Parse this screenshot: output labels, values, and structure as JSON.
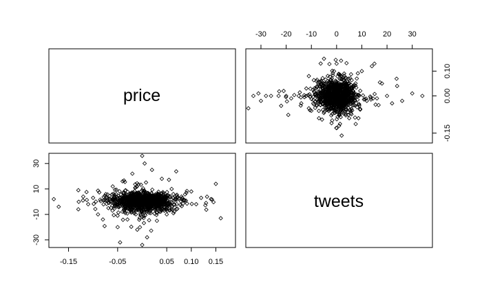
{
  "chart_data": {
    "type": "scatter",
    "layout": "pairs-matrix",
    "variables": [
      "price",
      "tweets"
    ],
    "panels": [
      {
        "name": "price-vs-tweets",
        "position": "top-right",
        "x_variable": "tweets",
        "y_variable": "price",
        "xlim": [
          -36,
          38
        ],
        "ylim": [
          -0.19,
          0.19
        ],
        "x_ticks": [
          -30,
          -20,
          -10,
          0,
          10,
          20,
          30
        ],
        "x_tick_labels": [
          "-30",
          "-20",
          "-10",
          "0",
          "10",
          "20",
          "30"
        ],
        "x_axis_side": "top",
        "y_ticks": [
          0.1,
          0.0,
          -0.15
        ],
        "y_tick_labels": [
          "0.10",
          "0.00",
          "-0.15"
        ],
        "y_axis_side": "right",
        "sample_points": [
          [
            -35,
            -0.05
          ],
          [
            -33,
            0.0
          ],
          [
            -31,
            0.01
          ],
          [
            -30,
            -0.02
          ],
          [
            -28,
            0.0
          ],
          [
            -26,
            0.0
          ],
          [
            -23,
            0.0
          ],
          [
            -22,
            -0.04
          ],
          [
            -21,
            0.02
          ],
          [
            -20,
            0.0
          ],
          [
            -18,
            -0.01
          ],
          [
            -15,
            0.0
          ],
          [
            -14,
            -0.03
          ],
          [
            -12,
            0.03
          ],
          [
            -11,
            0.08
          ],
          [
            -10,
            -0.06
          ],
          [
            -8,
            0.06
          ],
          [
            -7,
            -0.09
          ],
          [
            -5,
            0.15
          ],
          [
            -3,
            0.04
          ],
          [
            -2,
            -0.11
          ],
          [
            -1,
            0.1
          ],
          [
            0,
            -0.13
          ],
          [
            0,
            0.13
          ],
          [
            1,
            0.0
          ],
          [
            2,
            -0.16
          ],
          [
            3,
            0.09
          ],
          [
            5,
            -0.09
          ],
          [
            6,
            0.03
          ],
          [
            8,
            0.07
          ],
          [
            9,
            -0.04
          ],
          [
            10,
            0.1
          ],
          [
            12,
            -0.02
          ],
          [
            14,
            0.12
          ],
          [
            15,
            0.13
          ],
          [
            16,
            -0.01
          ],
          [
            18,
            0.05
          ],
          [
            20,
            0.0
          ],
          [
            22,
            -0.03
          ],
          [
            24,
            0.04
          ],
          [
            26,
            -0.02
          ],
          [
            30,
            0.01
          ],
          [
            34,
            0.0
          ]
        ]
      },
      {
        "name": "tweets-vs-price",
        "position": "bottom-left",
        "x_variable": "price",
        "y_variable": "tweets",
        "xlim": [
          -0.19,
          0.19
        ],
        "ylim": [
          -36,
          38
        ],
        "x_ticks": [
          -0.15,
          -0.05,
          0.05,
          0.1,
          0.15
        ],
        "x_tick_labels": [
          "-0.15",
          "-0.05",
          "0.05",
          "0.10",
          "0.15"
        ],
        "x_axis_side": "bottom",
        "y_ticks": [
          30,
          10,
          -10,
          -30
        ],
        "y_tick_labels": [
          "30",
          "10",
          "-10",
          "-30"
        ],
        "y_axis_side": "left",
        "sample_points": [
          [
            -0.18,
            2
          ],
          [
            -0.17,
            -4
          ],
          [
            -0.13,
            -6
          ],
          [
            -0.13,
            9
          ],
          [
            -0.12,
            4
          ],
          [
            -0.11,
            -2
          ],
          [
            -0.1,
            3
          ],
          [
            -0.09,
            -10
          ],
          [
            -0.08,
            -14
          ],
          [
            -0.07,
            2
          ],
          [
            -0.06,
            12
          ],
          [
            -0.05,
            -20
          ],
          [
            -0.045,
            -32
          ],
          [
            -0.04,
            16
          ],
          [
            -0.03,
            -14
          ],
          [
            -0.02,
            22
          ],
          [
            -0.01,
            -22
          ],
          [
            0.0,
            36
          ],
          [
            0.0,
            -34
          ],
          [
            0.005,
            30
          ],
          [
            0.01,
            -28
          ],
          [
            0.02,
            25
          ],
          [
            0.03,
            -15
          ],
          [
            0.04,
            18
          ],
          [
            0.05,
            -10
          ],
          [
            0.06,
            10
          ],
          [
            0.07,
            -6
          ],
          [
            0.08,
            4
          ],
          [
            0.09,
            7
          ],
          [
            0.1,
            8
          ],
          [
            0.11,
            -2
          ],
          [
            0.12,
            3
          ],
          [
            0.13,
            -1
          ],
          [
            0.14,
            2
          ],
          [
            0.15,
            14
          ],
          [
            0.16,
            -13
          ]
        ]
      }
    ],
    "point_marker": "diamond-outline",
    "point_color": "#000000",
    "cluster": {
      "description": "dense cloud centred at origin",
      "n_extra_points": 1100
    }
  }
}
